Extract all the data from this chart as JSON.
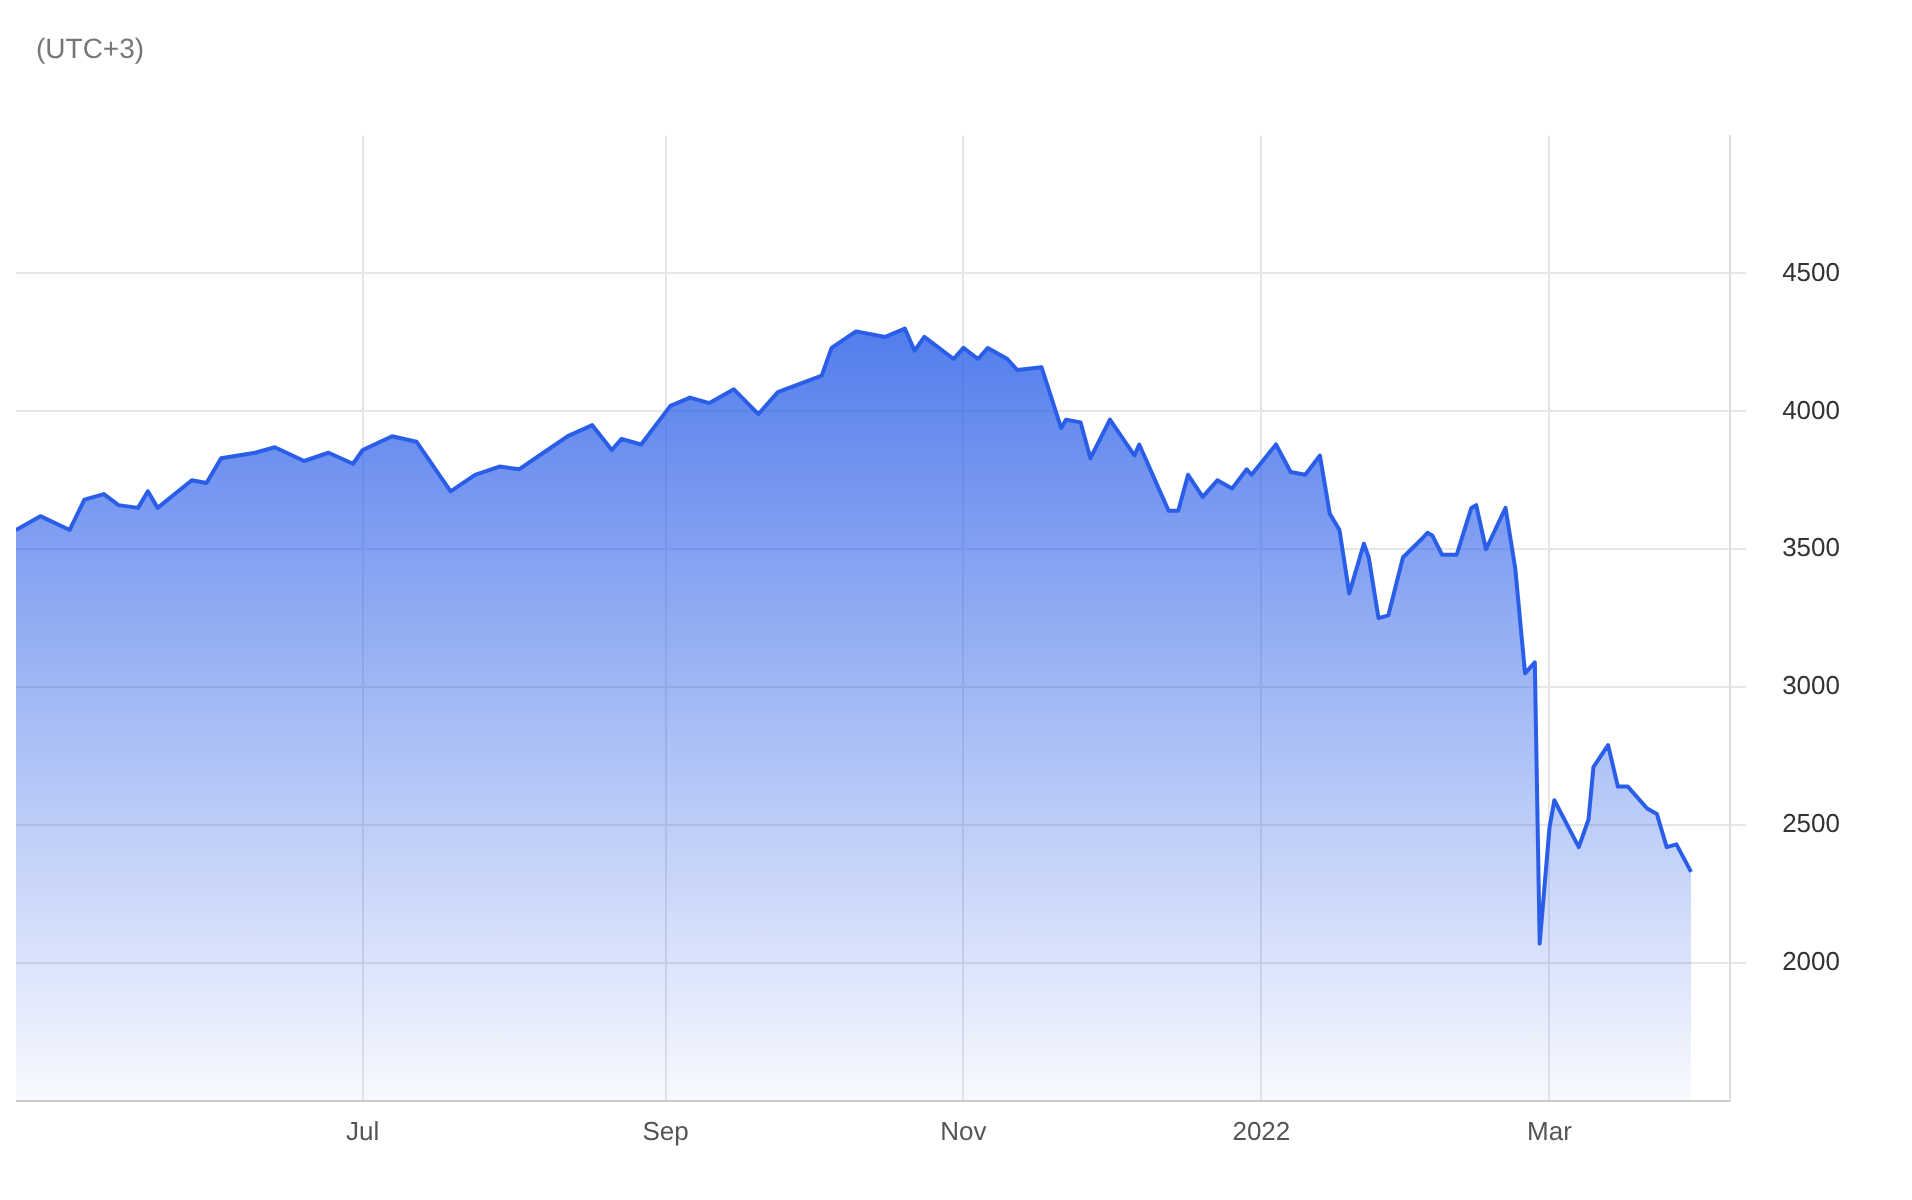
{
  "chart_data": {
    "type": "area",
    "title": "(UTC+3)",
    "x": [
      "2021-04-21",
      "2021-04-26",
      "2021-05-02",
      "2021-05-05",
      "2021-05-09",
      "2021-05-12",
      "2021-05-16",
      "2021-05-18",
      "2021-05-20",
      "2021-05-27",
      "2021-05-30",
      "2021-06-02",
      "2021-06-09",
      "2021-06-13",
      "2021-06-19",
      "2021-06-24",
      "2021-06-29",
      "2021-07-01",
      "2021-07-07",
      "2021-07-12",
      "2021-07-19",
      "2021-07-24",
      "2021-07-29",
      "2021-08-02",
      "2021-08-07",
      "2021-08-12",
      "2021-08-17",
      "2021-08-21",
      "2021-08-23",
      "2021-08-27",
      "2021-09-02",
      "2021-09-06",
      "2021-09-10",
      "2021-09-15",
      "2021-09-20",
      "2021-09-24",
      "2021-09-30",
      "2021-10-03",
      "2021-10-05",
      "2021-10-10",
      "2021-10-16",
      "2021-10-20",
      "2021-10-22",
      "2021-10-24",
      "2021-10-30",
      "2021-11-01",
      "2021-11-04",
      "2021-11-06",
      "2021-11-10",
      "2021-11-12",
      "2021-11-17",
      "2021-11-21",
      "2021-11-22",
      "2021-11-25",
      "2021-11-27",
      "2021-12-01",
      "2021-12-06",
      "2021-12-07",
      "2021-12-09",
      "2021-12-13",
      "2021-12-15",
      "2021-12-17",
      "2021-12-20",
      "2021-12-23",
      "2021-12-26",
      "2021-12-29",
      "2021-12-30",
      "2022-01-04",
      "2022-01-07",
      "2022-01-10",
      "2022-01-13",
      "2022-01-15",
      "2022-01-17",
      "2022-01-19",
      "2022-01-22",
      "2022-01-23",
      "2022-01-25",
      "2022-01-27",
      "2022-01-30",
      "2022-02-03",
      "2022-02-04",
      "2022-02-05",
      "2022-02-07",
      "2022-02-10",
      "2022-02-13",
      "2022-02-14",
      "2022-02-16",
      "2022-02-20",
      "2022-02-22",
      "2022-02-24",
      "2022-02-26",
      "2022-02-27",
      "2022-03-01",
      "2022-03-02",
      "2022-03-07",
      "2022-03-09",
      "2022-03-10",
      "2022-03-13",
      "2022-03-15",
      "2022-03-17",
      "2022-03-21",
      "2022-03-23",
      "2022-03-25",
      "2022-03-27",
      "2022-03-30"
    ],
    "series": [
      {
        "color": "#2a5ee8",
        "values": [
          3570,
          3620,
          3570,
          3680,
          3700,
          3660,
          3650,
          3710,
          3650,
          3750,
          3740,
          3830,
          3850,
          3870,
          3820,
          3850,
          3810,
          3860,
          3910,
          3890,
          3710,
          3770,
          3800,
          3790,
          3850,
          3910,
          3950,
          3860,
          3900,
          3880,
          4020,
          4050,
          4030,
          4080,
          3990,
          4070,
          4110,
          4130,
          4230,
          4290,
          4270,
          4300,
          4220,
          4270,
          4190,
          4230,
          4190,
          4230,
          4190,
          4150,
          4160,
          3940,
          3970,
          3960,
          3830,
          3970,
          3840,
          3880,
          3800,
          3640,
          3640,
          3770,
          3690,
          3750,
          3720,
          3790,
          3770,
          3880,
          3780,
          3770,
          3840,
          3630,
          3570,
          3340,
          3520,
          3470,
          3250,
          3260,
          3470,
          3540,
          3560,
          3550,
          3480,
          3480,
          3650,
          3660,
          3500,
          3650,
          3430,
          3050,
          3090,
          2070,
          2490,
          2590,
          2420,
          2520,
          2710,
          2790,
          2640,
          2640,
          2560,
          2540,
          2420,
          2430,
          2330
        ]
      }
    ],
    "xlim": [
      "2021-04-21",
      "2022-04-07"
    ],
    "xticks": [
      {
        "value": "2021-07-01",
        "label": "Jul"
      },
      {
        "value": "2021-09-01",
        "label": "Sep"
      },
      {
        "value": "2021-11-01",
        "label": "Nov"
      },
      {
        "value": "2022-01-01",
        "label": "2022"
      },
      {
        "value": "2022-03-01",
        "label": "Mar"
      }
    ],
    "ylim": [
      1500,
      5000
    ],
    "yticks": [
      2000,
      2500,
      3000,
      3500,
      4000,
      4500
    ],
    "grid": true,
    "legend": false,
    "marker": "none",
    "line_style": "solid"
  }
}
